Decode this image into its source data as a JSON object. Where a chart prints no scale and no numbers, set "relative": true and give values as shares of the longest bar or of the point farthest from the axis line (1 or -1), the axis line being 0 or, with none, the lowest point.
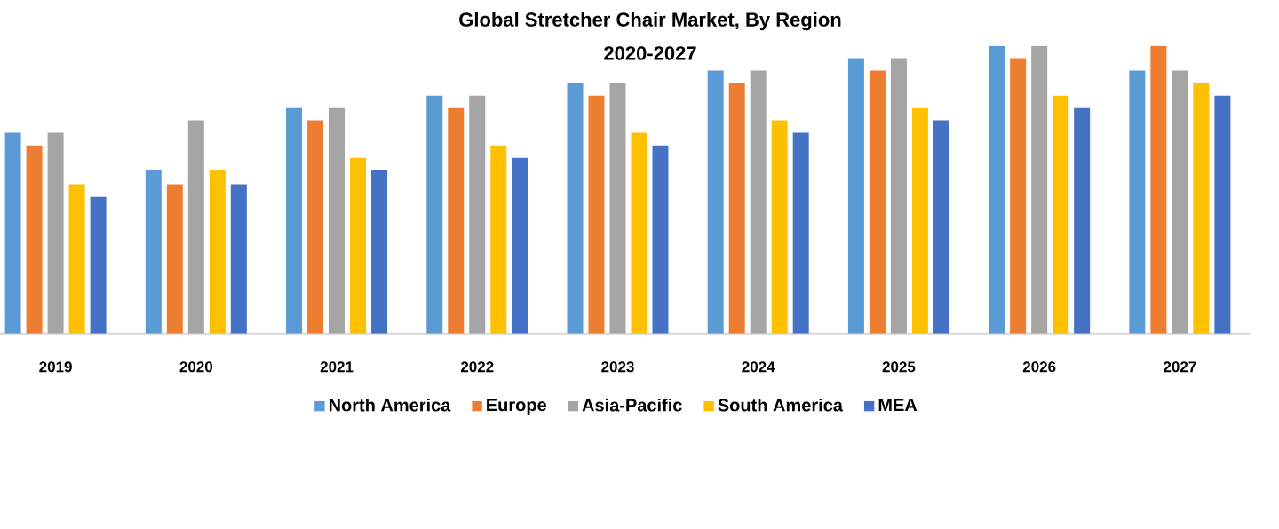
{
  "chart_data": {
    "type": "bar",
    "title": "Global Stretcher Chair Market, By Region",
    "subtitle": "2020-2027",
    "relative": true,
    "legend": "bottom",
    "categories": [
      "2019",
      "2020",
      "2021",
      "2022",
      "2023",
      "2024",
      "2025",
      "2026",
      "2027"
    ],
    "series": [
      {
        "name": "North America",
        "color": "#5b9bd5",
        "values": [
          0.698,
          0.568,
          0.784,
          0.827,
          0.87,
          0.914,
          0.957,
          1,
          0.914
        ]
      },
      {
        "name": "Europe",
        "color": "#ed7d31",
        "values": [
          0.654,
          0.519,
          0.741,
          0.784,
          0.827,
          0.87,
          0.914,
          0.957,
          1
        ]
      },
      {
        "name": "Asia-Pacific",
        "color": "#a5a5a5",
        "values": [
          0.698,
          0.741,
          0.784,
          0.827,
          0.87,
          0.914,
          0.957,
          1,
          0.914
        ]
      },
      {
        "name": "South America",
        "color": "#ffc000",
        "values": [
          0.519,
          0.568,
          0.611,
          0.654,
          0.698,
          0.741,
          0.784,
          0.827,
          0.87
        ]
      },
      {
        "name": "MEA",
        "color": "#4472c4",
        "values": [
          0.475,
          0.519,
          0.568,
          0.611,
          0.654,
          0.698,
          0.741,
          0.784,
          0.827
        ]
      }
    ]
  }
}
